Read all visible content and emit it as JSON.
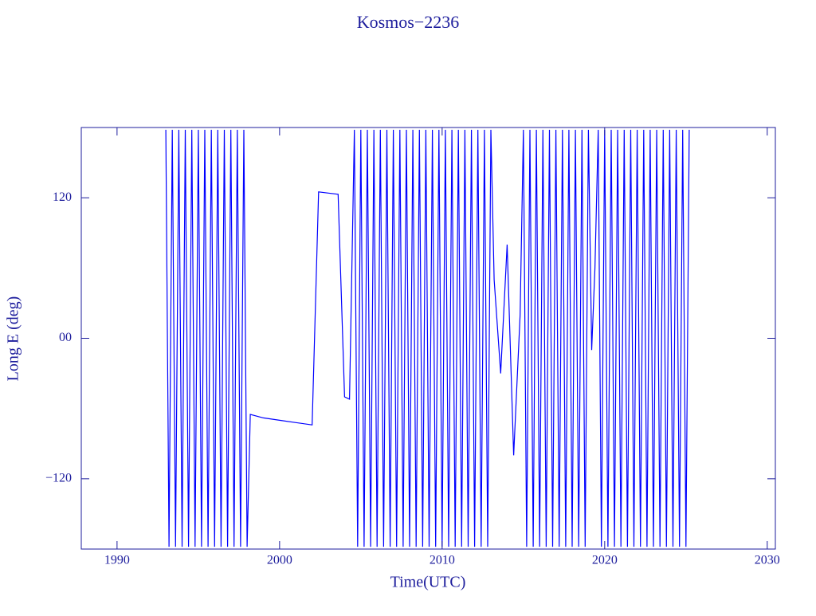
{
  "chart_data": {
    "type": "line",
    "title": "Kosmos−2236",
    "x_label": "Time(UTC)",
    "y_label": "Long E (deg)",
    "x": [
      1993,
      1993.2,
      1993.4,
      1993.6,
      1993.8,
      1994,
      1994.2,
      1994.4,
      1994.6,
      1994.8,
      1995,
      1995.2,
      1995.4,
      1995.6,
      1995.8,
      1996,
      1996.2,
      1996.4,
      1996.6,
      1996.8,
      1997,
      1997.2,
      1997.4,
      1997.6,
      1997.8,
      1998,
      1998.2,
      1999,
      2000,
      2001,
      2002,
      2002.4,
      2003,
      2003.6,
      2004,
      2004.3,
      2004.6,
      2004.8,
      2005,
      2005.2,
      2005.4,
      2005.6,
      2005.8,
      2006,
      2006.2,
      2006.4,
      2006.6,
      2006.8,
      2007,
      2007.2,
      2007.4,
      2007.6,
      2007.8,
      2008,
      2008.2,
      2008.4,
      2008.6,
      2008.8,
      2009,
      2009.2,
      2009.4,
      2009.6,
      2009.8,
      2010,
      2010.2,
      2010.4,
      2010.6,
      2010.8,
      2011,
      2011.2,
      2011.4,
      2011.6,
      2011.8,
      2012,
      2012.2,
      2012.4,
      2012.6,
      2012.8,
      2013,
      2013.2,
      2013.6,
      2014,
      2014.4,
      2014.8,
      2015,
      2015.2,
      2015.4,
      2015.6,
      2015.8,
      2016,
      2016.2,
      2016.4,
      2016.6,
      2016.8,
      2017,
      2017.2,
      2017.4,
      2017.6,
      2017.8,
      2018,
      2018.2,
      2018.4,
      2018.6,
      2018.8,
      2019,
      2019.2,
      2019.4,
      2019.6,
      2019.8,
      2020,
      2020.2,
      2020.4,
      2020.6,
      2020.8,
      2021,
      2021.2,
      2021.4,
      2021.6,
      2021.8,
      2022,
      2022.2,
      2022.4,
      2022.6,
      2022.8,
      2023,
      2023.2,
      2023.4,
      2023.6,
      2023.8,
      2024,
      2024.2,
      2024.4,
      2024.6,
      2024.8,
      2025,
      2025.2
    ],
    "series": [
      {
        "color": "#0000ff",
        "values": [
          178,
          -178,
          178,
          -178,
          178,
          -178,
          178,
          -178,
          178,
          -178,
          178,
          -178,
          178,
          -178,
          178,
          -178,
          178,
          -178,
          178,
          -178,
          178,
          -178,
          178,
          -178,
          178,
          -178,
          -65,
          -68,
          -70,
          -72,
          -74,
          125,
          124,
          123,
          -50,
          -52,
          178,
          -178,
          178,
          -178,
          178,
          -178,
          178,
          -178,
          178,
          -178,
          178,
          -178,
          178,
          -178,
          178,
          -178,
          178,
          -178,
          178,
          -178,
          178,
          -178,
          178,
          -178,
          178,
          -178,
          178,
          -178,
          178,
          -178,
          178,
          -178,
          178,
          -178,
          178,
          -178,
          178,
          -178,
          178,
          -178,
          178,
          -178,
          178,
          50,
          -30,
          80,
          -100,
          20,
          178,
          -178,
          178,
          -178,
          178,
          -178,
          178,
          -178,
          178,
          -178,
          178,
          -178,
          178,
          -178,
          178,
          -178,
          178,
          -178,
          178,
          -178,
          178,
          -10,
          60,
          178,
          -178,
          178,
          -178,
          178,
          -178,
          178,
          -178,
          178,
          -178,
          178,
          -178,
          178,
          -178,
          178,
          -178,
          178,
          -178,
          178,
          -178,
          178,
          -178,
          178,
          -178,
          178,
          -178,
          178,
          -178,
          178
        ]
      }
    ],
    "xlim": [
      1987.8,
      2030.5
    ],
    "xticks": [
      1990,
      2000,
      2010,
      2020,
      2030
    ],
    "ylim": [
      -180,
      180
    ],
    "yticks": [
      {
        "value": -120,
        "label": "−120"
      },
      {
        "value": 0,
        "label": "00"
      },
      120
    ]
  }
}
